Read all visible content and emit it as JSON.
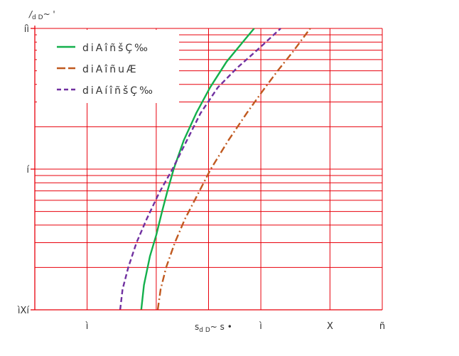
{
  "chart_data": {
    "type": "line",
    "xlabel": "sₔ D~ s •",
    "xlabel_parts": {
      "main": "s",
      "sub": "d D",
      "rest": "~ s •"
    },
    "ylabel": "/ₔ D~ '",
    "ylabel_parts": {
      "main": "/",
      "sub": "d D",
      "rest": "~ '"
    },
    "x_scale": "log",
    "y_scale": "log",
    "xlim": [
      1,
      100
    ],
    "ylim": [
      0.1,
      10
    ],
    "x_tick_labels": [
      {
        "value": 2,
        "label": "ì"
      },
      {
        "value": 20,
        "label": "ì"
      },
      {
        "value": 50,
        "label": "X"
      },
      {
        "value": 100,
        "label": "ñ"
      }
    ],
    "y_tick_labels": [
      {
        "value": 0.1,
        "label": "ìXí"
      },
      {
        "value": 1,
        "label": "í"
      },
      {
        "value": 10,
        "label": "íì"
      }
    ],
    "grid": {
      "x_major": [
        1,
        2,
        5,
        10,
        20,
        50,
        100
      ],
      "y_minor": true,
      "color": "#e8000b"
    },
    "legend_position": "top-left",
    "series": [
      {
        "name": "d i A î ñ š Ç ‰",
        "color": "#13b04c",
        "dash": "solid",
        "points": [
          [
            4.1,
            0.1
          ],
          [
            4.25,
            0.15
          ],
          [
            4.6,
            0.24
          ],
          [
            5.0,
            0.34
          ],
          [
            5.4,
            0.5
          ],
          [
            5.8,
            0.7
          ],
          [
            6.3,
            1.0
          ],
          [
            7.2,
            1.6
          ],
          [
            8.5,
            2.5
          ],
          [
            10.2,
            3.8
          ],
          [
            12.7,
            5.8
          ],
          [
            16.4,
            8.5
          ],
          [
            18.3,
            10
          ]
        ]
      },
      {
        "name": "d i A î ñ u Æ",
        "color": "#c0591f",
        "dash": "dashdot",
        "points": [
          [
            5.1,
            0.1
          ],
          [
            5.3,
            0.14
          ],
          [
            5.7,
            0.2
          ],
          [
            6.4,
            0.3
          ],
          [
            7.3,
            0.44
          ],
          [
            8.6,
            0.65
          ],
          [
            10.3,
            1.0
          ],
          [
            13.0,
            1.6
          ],
          [
            16.6,
            2.5
          ],
          [
            20.5,
            3.6
          ],
          [
            25.0,
            5.0
          ],
          [
            30.5,
            6.8
          ],
          [
            38.5,
            10
          ]
        ]
      },
      {
        "name": "d i A í î ñ š Ç ‰",
        "color": "#7030a0",
        "dash": "dash",
        "points": [
          [
            3.1,
            0.1
          ],
          [
            3.2,
            0.14
          ],
          [
            3.45,
            0.2
          ],
          [
            3.85,
            0.3
          ],
          [
            4.4,
            0.44
          ],
          [
            5.2,
            0.68
          ],
          [
            6.2,
            1.0
          ],
          [
            7.5,
            1.6
          ],
          [
            9.0,
            2.5
          ],
          [
            11.3,
            3.8
          ],
          [
            14.5,
            5.2
          ],
          [
            19.0,
            7.0
          ],
          [
            26.0,
            10
          ]
        ]
      }
    ]
  }
}
